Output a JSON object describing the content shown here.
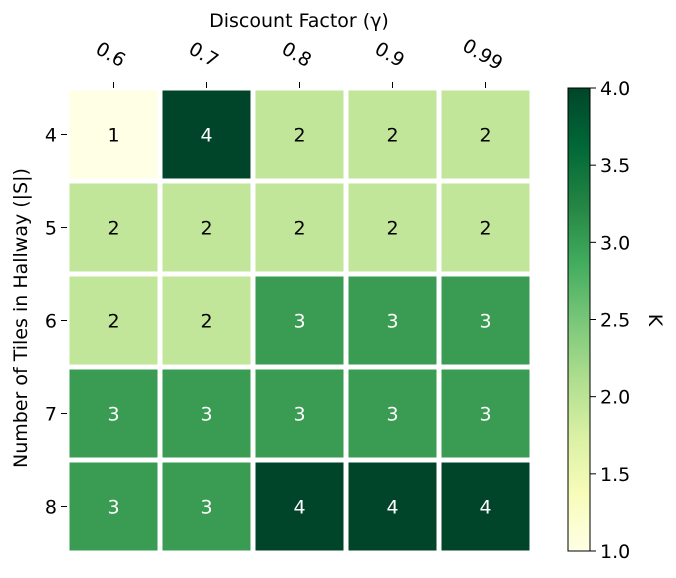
{
  "chart_data": {
    "type": "heatmap",
    "title": "",
    "xlabel": "Discount Factor (γ)",
    "ylabel": "Number of Tiles in Hallway (|S|)",
    "x_tick_labels": [
      "0.6",
      "0.7",
      "0.8",
      "0.9",
      "0.99"
    ],
    "y_tick_labels": [
      "4",
      "5",
      "6",
      "7",
      "8"
    ],
    "values": [
      [
        1,
        4,
        2,
        2,
        2
      ],
      [
        2,
        2,
        2,
        2,
        2
      ],
      [
        2,
        2,
        3,
        3,
        3
      ],
      [
        3,
        3,
        3,
        3,
        3
      ],
      [
        3,
        3,
        4,
        4,
        4
      ]
    ],
    "colorbar": {
      "label": "K",
      "range": [
        1.0,
        4.0
      ],
      "tick_labels": [
        "1.0",
        "1.5",
        "2.0",
        "2.5",
        "3.0",
        "3.5",
        "4.0"
      ],
      "colormap": "YlGn"
    },
    "colors": {
      "1": "#ffffe5",
      "2": "#c2e699",
      "3": "#3a9b53",
      "4": "#004529"
    },
    "grid": false
  }
}
